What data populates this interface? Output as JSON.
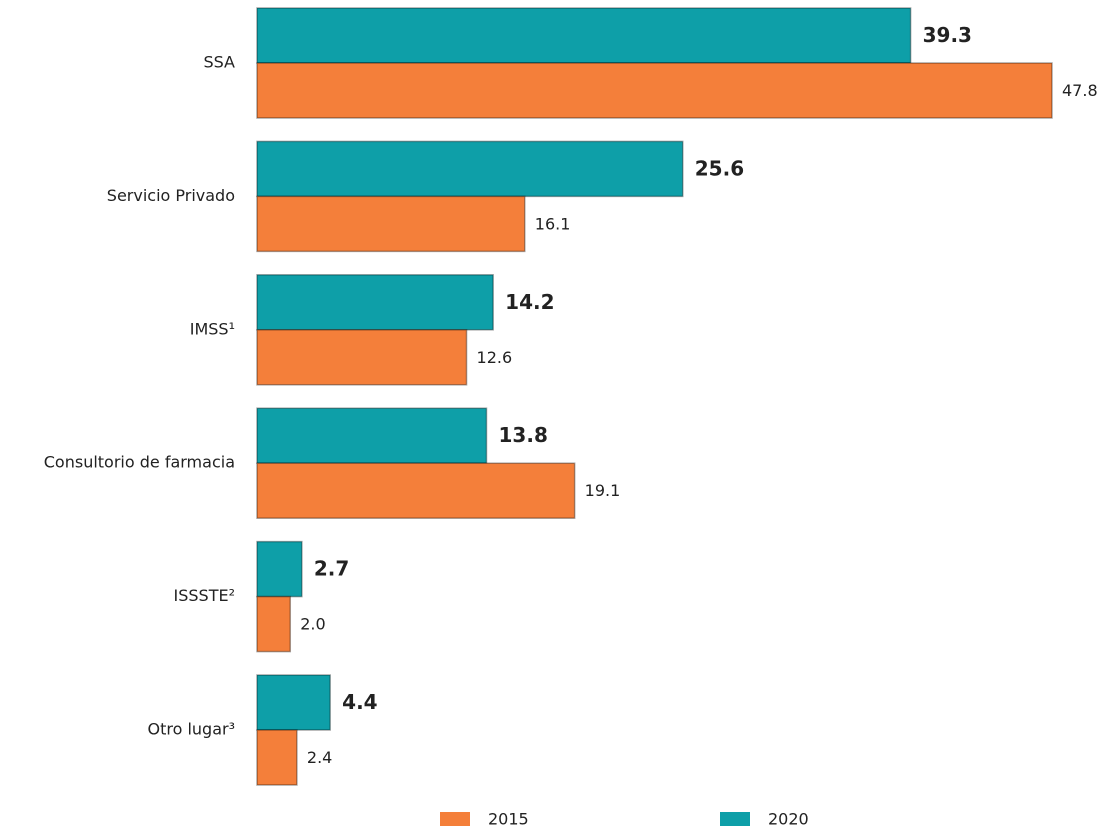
{
  "chart_data": {
    "type": "bar",
    "orientation": "horizontal",
    "categories": [
      "SSA",
      "Servicio Privado",
      "IMSS¹",
      "Consultorio de farmacia",
      "ISSSTE²",
      "Otro lugar³"
    ],
    "series": [
      {
        "name": "2015",
        "color": "#f47f3a",
        "values": [
          47.8,
          16.1,
          12.6,
          19.1,
          2.0,
          2.4
        ],
        "value_labels": [
          "47.8",
          "16.1",
          "12.6",
          "19.1",
          "2.0",
          "2.4"
        ]
      },
      {
        "name": "2020",
        "color": "#0e9fa8",
        "values": [
          39.3,
          25.6,
          14.2,
          13.8,
          2.7,
          4.4
        ]
      }
    ]
  }
}
